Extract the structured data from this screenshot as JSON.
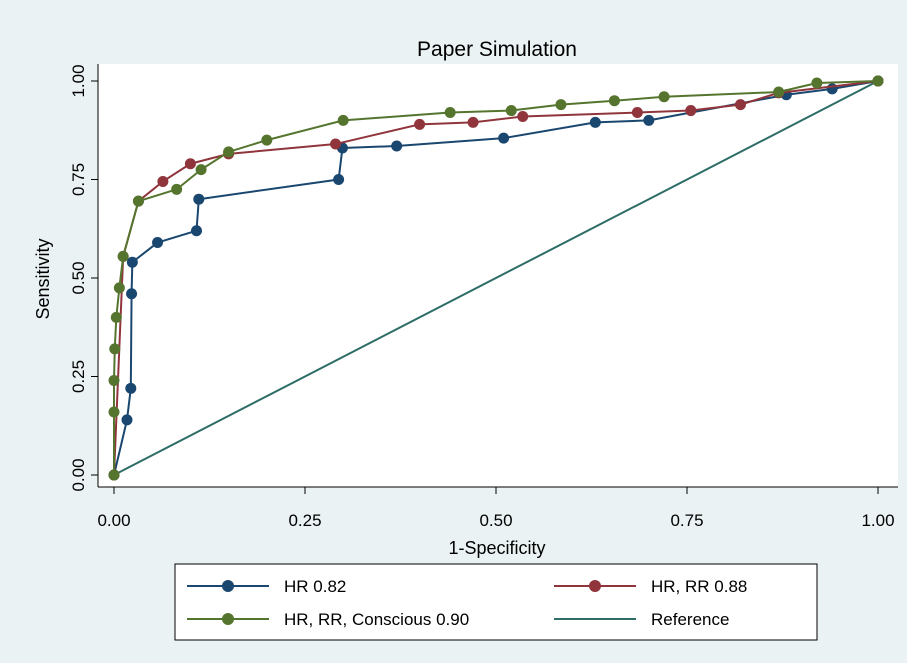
{
  "chart_data": {
    "type": "line",
    "title": "Paper Simulation",
    "xlabel": "1-Specificity",
    "ylabel": "Sensitivity",
    "xlim": [
      0,
      1
    ],
    "ylim": [
      0,
      1
    ],
    "x_ticks": [
      0,
      0.25,
      0.5,
      0.75,
      1
    ],
    "y_ticks": [
      0,
      0.25,
      0.5,
      0.75,
      1
    ],
    "x_tick_labels": [
      "0.00",
      "0.25",
      "0.50",
      "0.75",
      "1.00"
    ],
    "y_tick_labels": [
      "0.00",
      "0.25",
      "0.50",
      "0.75",
      "1.00"
    ],
    "grid": false,
    "legend_position": "bottom",
    "series": [
      {
        "name": "HR 0.82",
        "color": "#1a476f",
        "markers": true,
        "x": [
          0,
          0.017,
          0.022,
          0.023,
          0.024,
          0.057,
          0.108,
          0.111,
          0.294,
          0.299,
          0.37,
          0.51,
          0.63,
          0.7,
          0.88,
          0.94,
          1.0
        ],
        "y": [
          0,
          0.14,
          0.22,
          0.46,
          0.54,
          0.59,
          0.62,
          0.7,
          0.75,
          0.83,
          0.835,
          0.855,
          0.895,
          0.9,
          0.965,
          0.98,
          1.0
        ]
      },
      {
        "name": "HR, RR 0.88",
        "color": "#90353b",
        "markers": true,
        "x": [
          0,
          0.012,
          0.032,
          0.064,
          0.1,
          0.15,
          0.29,
          0.4,
          0.47,
          0.535,
          0.685,
          0.755,
          0.82,
          0.87,
          1.0
        ],
        "y": [
          0,
          0.555,
          0.695,
          0.745,
          0.79,
          0.815,
          0.84,
          0.89,
          0.895,
          0.91,
          0.92,
          0.925,
          0.94,
          0.97,
          1.0
        ]
      },
      {
        "name": "HR, RR, Conscious 0.90",
        "color": "#55752f",
        "markers": true,
        "x": [
          0,
          0.0,
          0.0,
          0.001,
          0.003,
          0.007,
          0.012,
          0.032,
          0.082,
          0.114,
          0.15,
          0.2,
          0.3,
          0.44,
          0.52,
          0.585,
          0.655,
          0.72,
          0.87,
          0.92,
          1.0
        ],
        "y": [
          0,
          0.16,
          0.24,
          0.32,
          0.4,
          0.475,
          0.555,
          0.695,
          0.725,
          0.775,
          0.82,
          0.85,
          0.9,
          0.92,
          0.925,
          0.94,
          0.95,
          0.96,
          0.972,
          0.995,
          1.0
        ]
      },
      {
        "name": "Reference",
        "color": "#2d6d66",
        "markers": false,
        "x": [
          0,
          1
        ],
        "y": [
          0,
          1
        ]
      }
    ]
  }
}
